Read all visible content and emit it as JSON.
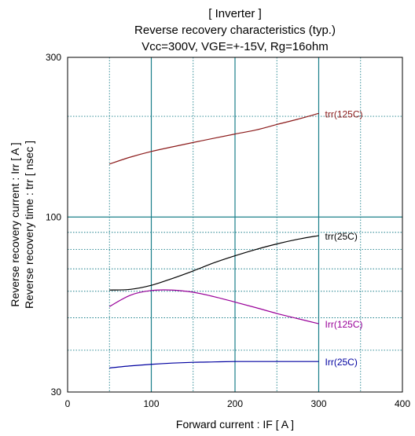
{
  "chart_data": {
    "type": "line",
    "title_lines": [
      "[ Inverter ]",
      "Reverse recovery characteristics  (typ.)",
      "Vcc=300V, VGE=+-15V, Rg=16ohm"
    ],
    "xlabel": "Forward current  :  IF  [ A ]",
    "ylabel_lines": [
      "Reverse recovery current  :  Irr  [ A ]",
      "Reverse recovery time  :  trr  [ nsec ]"
    ],
    "xlim": [
      0,
      400
    ],
    "ylim": [
      30,
      300
    ],
    "yscale": "log",
    "x_ticks": [
      0,
      100,
      200,
      300,
      400
    ],
    "y_ticks": [
      30,
      100,
      300
    ],
    "x_tick_labels": [
      "0",
      "100",
      "200",
      "300",
      "400"
    ],
    "y_tick_labels": [
      "30",
      "100",
      "300"
    ],
    "grid": "dotted minor, solid major",
    "series": [
      {
        "name": "trr(125C)",
        "color": "#8b1a1a",
        "x": [
          50,
          75,
          100,
          125,
          150,
          175,
          200,
          225,
          250,
          275,
          300
        ],
        "y": [
          144,
          151,
          157,
          162,
          167,
          172,
          177,
          182,
          189,
          196,
          204
        ]
      },
      {
        "name": "trr(25C)",
        "color": "#000000",
        "x": [
          50,
          75,
          100,
          125,
          150,
          175,
          200,
          225,
          250,
          275,
          300
        ],
        "y": [
          60.5,
          60.8,
          62.5,
          65.5,
          69.0,
          73.0,
          76.6,
          80.0,
          83.1,
          85.8,
          88.0
        ]
      },
      {
        "name": "Irr(125C)",
        "color": "#990099",
        "x": [
          50,
          75,
          100,
          125,
          150,
          175,
          200,
          225,
          250,
          275,
          300
        ],
        "y": [
          54.0,
          58.4,
          60.3,
          60.5,
          59.6,
          57.8,
          55.7,
          53.6,
          51.5,
          49.7,
          48.0
        ]
      },
      {
        "name": "Irr(25C)",
        "color": "#0000a0",
        "x": [
          50,
          75,
          100,
          125,
          150,
          175,
          200,
          225,
          250,
          275,
          300
        ],
        "y": [
          35.4,
          35.9,
          36.3,
          36.6,
          36.8,
          36.9,
          37.0,
          37.0,
          37.0,
          37.0,
          37.0
        ]
      }
    ]
  }
}
